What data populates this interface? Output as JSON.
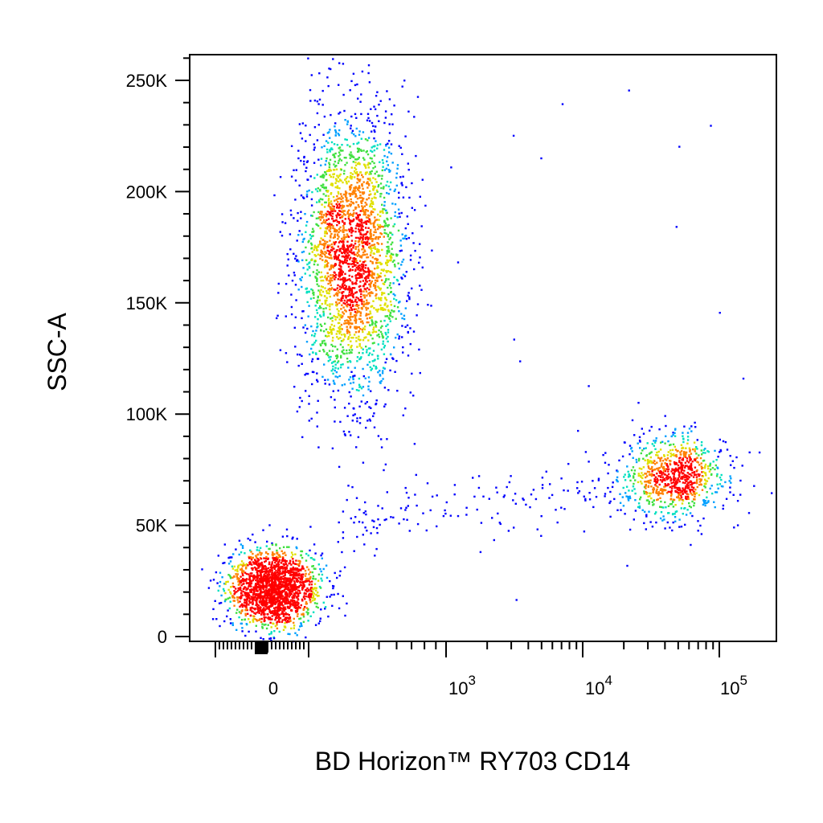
{
  "chart_data": {
    "type": "scatter",
    "plot_style": "flow-cytometry density dot plot (pseudocolor)",
    "xlabel": "BD Horizon™ RY703 CD14",
    "ylabel": "SSC-A",
    "x_scale": "biexponential (linear near 0, log above ~10^2.5)",
    "y_scale": "linear",
    "ylim": [
      0,
      262144
    ],
    "xlim": [
      -200,
      150000
    ],
    "y_ticks": [
      {
        "value": 0,
        "label": "0"
      },
      {
        "value": 50000,
        "label": "50K"
      },
      {
        "value": 100000,
        "label": "100K"
      },
      {
        "value": 150000,
        "label": "150K"
      },
      {
        "value": 200000,
        "label": "200K"
      },
      {
        "value": 250000,
        "label": "250K"
      }
    ],
    "x_ticks": [
      {
        "value": 0,
        "label": "0"
      },
      {
        "value": 1000,
        "label": "10",
        "exp": "3"
      },
      {
        "value": 10000,
        "label": "10",
        "exp": "4"
      },
      {
        "value": 100000,
        "label": "10",
        "exp": "5"
      }
    ],
    "density_colors": [
      "#0000ff",
      "#00a0ff",
      "#00e0c0",
      "#40e040",
      "#e0e000",
      "#ff8000",
      "#ff0000"
    ],
    "populations": [
      {
        "x_center": 0,
        "y_center": 22000,
        "count": 1900,
        "core": true
      },
      {
        "x_center": 300,
        "y_center": 170000,
        "count": 2600,
        "core": false
      },
      {
        "x_center": 45000,
        "y_center": 72000,
        "count": 850,
        "core": false
      },
      {
        "x_center": 3000,
        "y_center": 58000,
        "count": 160,
        "core": false
      }
    ],
    "grid": false,
    "legend": "none"
  }
}
